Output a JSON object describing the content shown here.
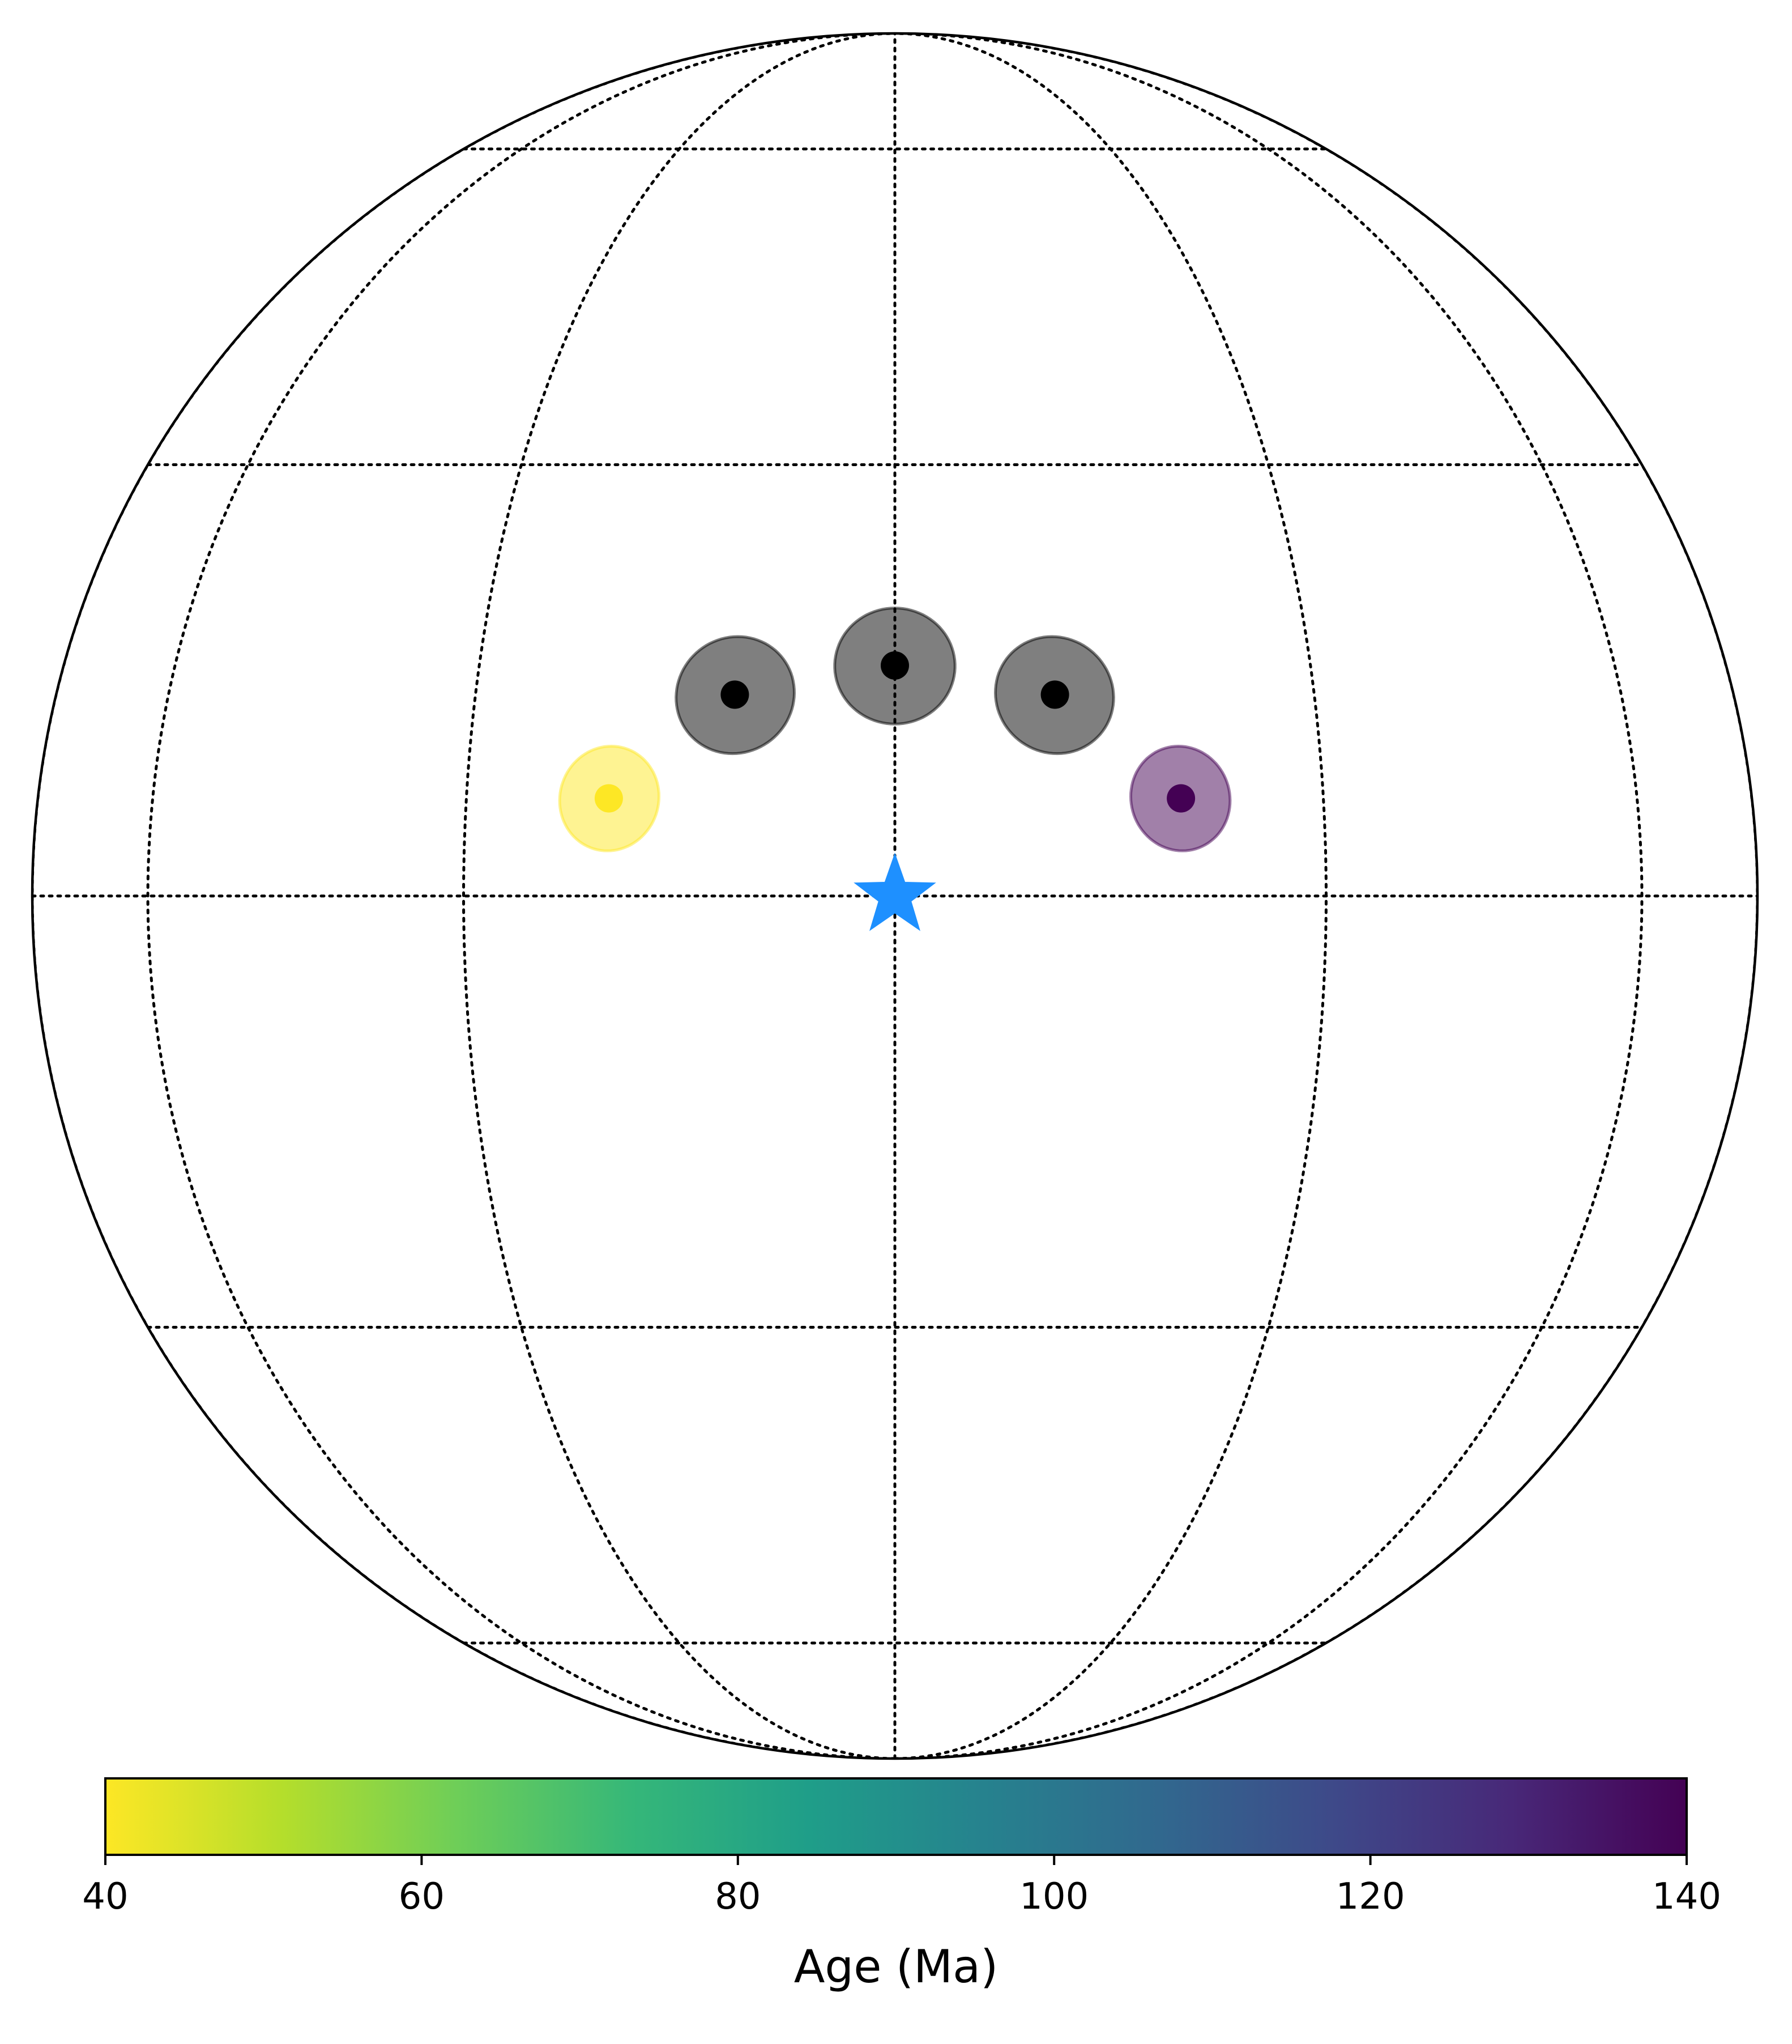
{
  "chart_data": {
    "type": "scatter",
    "projection": "orthographic",
    "view_center": {
      "lon": 0,
      "lat": 0
    },
    "graticule": {
      "parallels_deg": [
        -60,
        -30,
        0,
        30,
        60
      ],
      "meridians_deg": [
        -90,
        -60,
        -30,
        0,
        30,
        60,
        90
      ],
      "line_style": "dotted"
    },
    "reference_point": {
      "lon": 0,
      "lat": 0,
      "marker": "star",
      "color": "#1e90ff"
    },
    "poles": [
      {
        "lon": -19.5,
        "lat": 6.5,
        "age": 40,
        "a95_deg": 3.5
      },
      {
        "lon": -11,
        "lat": 13.5,
        "age": null,
        "a95_deg": 4
      },
      {
        "lon": 0,
        "lat": 15.5,
        "age": null,
        "a95_deg": 4
      },
      {
        "lon": 11,
        "lat": 13.5,
        "age": null,
        "a95_deg": 4
      },
      {
        "lon": 19.5,
        "lat": 6.5,
        "age": 140,
        "a95_deg": 3.5
      }
    ],
    "unassigned_age_color": "#000000",
    "colorbar": {
      "label": "Age (Ma)",
      "min": 40,
      "max": 140,
      "ticks": [
        "40",
        "60",
        "80",
        "100",
        "120",
        "140"
      ],
      "colormap": "viridis_r",
      "orientation": "horizontal",
      "placement": "bottom"
    },
    "colormap_stops": [
      "#fde725",
      "#b5de2b",
      "#6ece58",
      "#35b779",
      "#1f9e89",
      "#26828e",
      "#31688e",
      "#3e4989",
      "#482878",
      "#440154"
    ]
  }
}
